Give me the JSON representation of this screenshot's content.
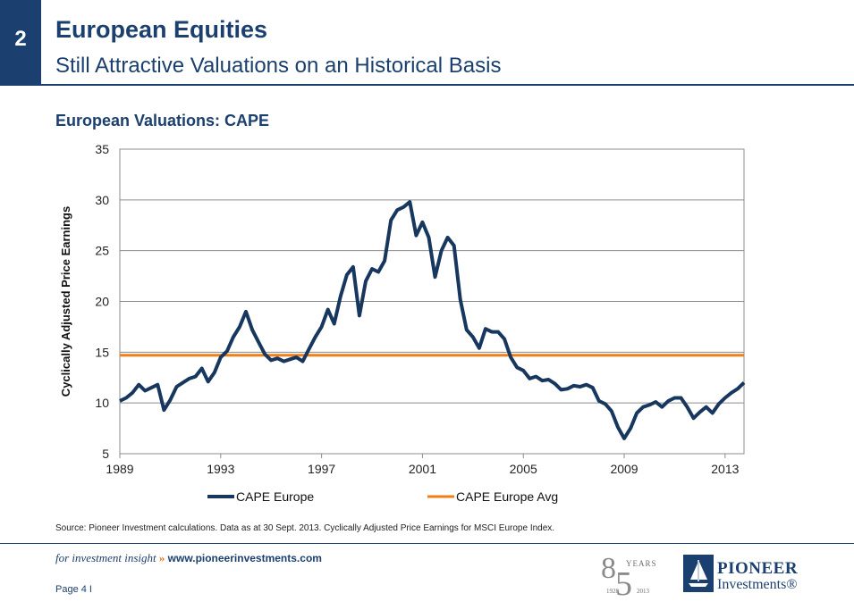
{
  "header": {
    "badge": "2",
    "title": "European Equities",
    "subtitle": "Still Attractive Valuations on an Historical Basis"
  },
  "chart_title": "European Valuations: CAPE",
  "chart_data": {
    "type": "line",
    "ylabel": "Cyclically Adjusted Price Earnings",
    "xlabel": "",
    "xlim": [
      1989,
      2013.75
    ],
    "ylim": [
      5,
      35
    ],
    "yticks": [
      5,
      10,
      15,
      20,
      25,
      30,
      35
    ],
    "xticks": [
      "1989",
      "1993",
      "1997",
      "2001",
      "2005",
      "2009",
      "2013"
    ],
    "grid": "horizontal",
    "legend_position": "bottom",
    "series": [
      {
        "name": "CAPE Europe",
        "color": "#17375e",
        "x": [
          1989.0,
          1989.25,
          1989.5,
          1989.75,
          1990.0,
          1990.25,
          1990.5,
          1990.75,
          1991.0,
          1991.25,
          1991.5,
          1991.75,
          1992.0,
          1992.25,
          1992.5,
          1992.75,
          1993.0,
          1993.25,
          1993.5,
          1993.75,
          1994.0,
          1994.25,
          1994.5,
          1994.75,
          1995.0,
          1995.25,
          1995.5,
          1995.75,
          1996.0,
          1996.25,
          1996.5,
          1996.75,
          1997.0,
          1997.25,
          1997.5,
          1997.75,
          1998.0,
          1998.25,
          1998.5,
          1998.75,
          1999.0,
          1999.25,
          1999.5,
          1999.75,
          2000.0,
          2000.25,
          2000.5,
          2000.75,
          2001.0,
          2001.25,
          2001.5,
          2001.75,
          2002.0,
          2002.25,
          2002.5,
          2002.75,
          2003.0,
          2003.25,
          2003.5,
          2003.75,
          2004.0,
          2004.25,
          2004.5,
          2004.75,
          2005.0,
          2005.25,
          2005.5,
          2005.75,
          2006.0,
          2006.25,
          2006.5,
          2006.75,
          2007.0,
          2007.25,
          2007.5,
          2007.75,
          2008.0,
          2008.25,
          2008.5,
          2008.75,
          2009.0,
          2009.25,
          2009.5,
          2009.75,
          2010.0,
          2010.25,
          2010.5,
          2010.75,
          2011.0,
          2011.25,
          2011.5,
          2011.75,
          2012.0,
          2012.25,
          2012.5,
          2012.75,
          2013.0,
          2013.25,
          2013.5,
          2013.75
        ],
        "values": [
          10.2,
          10.5,
          11.0,
          11.8,
          11.2,
          11.5,
          11.8,
          9.3,
          10.3,
          11.6,
          12.0,
          12.4,
          12.6,
          13.4,
          12.1,
          13.0,
          14.5,
          15.1,
          16.5,
          17.5,
          19.0,
          17.2,
          16.0,
          14.8,
          14.2,
          14.4,
          14.1,
          14.3,
          14.5,
          14.1,
          15.3,
          16.5,
          17.5,
          19.2,
          17.8,
          20.5,
          22.6,
          23.4,
          18.6,
          22.0,
          23.2,
          22.9,
          24.0,
          28.0,
          29.0,
          29.3,
          29.8,
          26.5,
          27.8,
          26.3,
          22.4,
          25.0,
          26.3,
          25.5,
          20.2,
          17.2,
          16.5,
          15.4,
          17.3,
          17.0,
          17.0,
          16.3,
          14.5,
          13.5,
          13.2,
          12.4,
          12.6,
          12.2,
          12.3,
          11.9,
          11.3,
          11.4,
          11.7,
          11.6,
          11.8,
          11.5,
          10.2,
          9.9,
          9.2,
          7.6,
          6.5,
          7.5,
          9.0,
          9.6,
          9.8,
          10.1,
          9.6,
          10.2,
          10.5,
          10.5,
          9.6,
          8.5,
          9.1,
          9.6,
          9.0,
          9.9,
          10.5,
          11.0,
          11.4,
          12.0
        ]
      },
      {
        "name": "CAPE Europe Avg",
        "color": "#f07f1a",
        "x": [
          1989,
          2013.75
        ],
        "values": [
          14.7,
          14.7
        ]
      }
    ]
  },
  "source": "Source: Pioneer Investment calculations. Data as at 30 Sept. 2013. Cyclically Adjusted Price Earnings for MSCI Europe Index.",
  "footer": {
    "tagline": "for investment insight",
    "chevron": "»",
    "url": "www.pioneerinvestments.com",
    "page": "Page 4   I",
    "anniversary": {
      "eight": "8",
      "five": "5",
      "years": "YEARS",
      "start": "1928",
      "end": "2013"
    },
    "logo_name": "PIONEER",
    "logo_sub": "Investments®"
  }
}
